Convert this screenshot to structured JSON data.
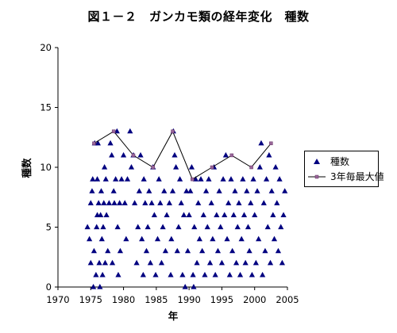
{
  "chart_data": {
    "type": "scatter",
    "title": "図１－２　ガンカモ類の経年変化　種数",
    "xlabel": "年",
    "ylabel": "種数",
    "xlim": [
      1970,
      2005
    ],
    "ylim": [
      0,
      20
    ],
    "xticks": [
      "1970",
      "1975",
      "1980",
      "1985",
      "1990",
      "1995",
      "2000",
      "2005"
    ],
    "yticks": [
      "0",
      "5",
      "10",
      "15",
      "20"
    ],
    "grid": false,
    "legend_position": "right",
    "colors": {
      "points": "#000080",
      "line": "#000000",
      "line_marker": "#996699"
    },
    "series": [
      {
        "name": "種数",
        "kind": "markers",
        "marker": "triangle",
        "points": [
          [
            1974.5,
            5
          ],
          [
            1974.8,
            4
          ],
          [
            1975.0,
            2
          ],
          [
            1975.0,
            7
          ],
          [
            1975.2,
            8
          ],
          [
            1975.3,
            9
          ],
          [
            1975.4,
            0
          ],
          [
            1975.5,
            3
          ],
          [
            1975.6,
            12
          ],
          [
            1975.8,
            1
          ],
          [
            1975.9,
            5
          ],
          [
            1976.0,
            6
          ],
          [
            1976.0,
            9
          ],
          [
            1976.1,
            12
          ],
          [
            1976.2,
            7
          ],
          [
            1976.3,
            2
          ],
          [
            1976.4,
            0
          ],
          [
            1976.5,
            6
          ],
          [
            1976.6,
            8
          ],
          [
            1976.7,
            4
          ],
          [
            1976.8,
            1
          ],
          [
            1976.9,
            5
          ],
          [
            1977.0,
            7
          ],
          [
            1977.1,
            10
          ],
          [
            1977.2,
            2
          ],
          [
            1977.3,
            9
          ],
          [
            1977.4,
            6
          ],
          [
            1977.6,
            3
          ],
          [
            1977.8,
            7
          ],
          [
            1978.0,
            12
          ],
          [
            1978.2,
            11
          ],
          [
            1978.3,
            2
          ],
          [
            1978.5,
            8
          ],
          [
            1978.6,
            7
          ],
          [
            1978.8,
            9
          ],
          [
            1979.0,
            13
          ],
          [
            1979.1,
            5
          ],
          [
            1979.2,
            1
          ],
          [
            1979.4,
            7
          ],
          [
            1979.5,
            3
          ],
          [
            1979.7,
            9
          ],
          [
            1980.0,
            11
          ],
          [
            1980.2,
            7
          ],
          [
            1980.4,
            4
          ],
          [
            1980.6,
            9
          ],
          [
            1981.0,
            13
          ],
          [
            1981.2,
            10
          ],
          [
            1981.5,
            11
          ],
          [
            1981.7,
            7
          ],
          [
            1982.0,
            2
          ],
          [
            1982.2,
            5
          ],
          [
            1982.4,
            8
          ],
          [
            1982.6,
            11
          ],
          [
            1982.8,
            4
          ],
          [
            1983.0,
            1
          ],
          [
            1983.1,
            9
          ],
          [
            1983.3,
            7
          ],
          [
            1983.5,
            3
          ],
          [
            1983.7,
            5
          ],
          [
            1983.9,
            8
          ],
          [
            1984.1,
            2
          ],
          [
            1984.3,
            7
          ],
          [
            1984.5,
            10
          ],
          [
            1984.7,
            6
          ],
          [
            1984.9,
            1
          ],
          [
            1985.2,
            4
          ],
          [
            1985.4,
            9
          ],
          [
            1985.6,
            7
          ],
          [
            1985.8,
            2
          ],
          [
            1986.0,
            5
          ],
          [
            1986.2,
            8
          ],
          [
            1986.4,
            3
          ],
          [
            1986.6,
            6
          ],
          [
            1987.0,
            7
          ],
          [
            1987.2,
            1
          ],
          [
            1987.3,
            4
          ],
          [
            1987.5,
            8
          ],
          [
            1987.6,
            13
          ],
          [
            1987.8,
            11
          ],
          [
            1988.0,
            10
          ],
          [
            1988.2,
            3
          ],
          [
            1988.4,
            5
          ],
          [
            1988.6,
            9
          ],
          [
            1988.8,
            7
          ],
          [
            1989.0,
            1
          ],
          [
            1989.2,
            6
          ],
          [
            1989.4,
            0
          ],
          [
            1989.6,
            8
          ],
          [
            1989.8,
            3
          ],
          [
            1990.0,
            6
          ],
          [
            1990.2,
            8
          ],
          [
            1990.4,
            10
          ],
          [
            1990.6,
            1
          ],
          [
            1990.7,
            0
          ],
          [
            1990.8,
            5
          ],
          [
            1991.0,
            9
          ],
          [
            1991.2,
            2
          ],
          [
            1991.4,
            7
          ],
          [
            1991.6,
            4
          ],
          [
            1991.8,
            9
          ],
          [
            1992.0,
            3
          ],
          [
            1992.2,
            6
          ],
          [
            1992.4,
            1
          ],
          [
            1992.6,
            8
          ],
          [
            1992.8,
            5
          ],
          [
            1993.0,
            9
          ],
          [
            1993.2,
            2
          ],
          [
            1993.4,
            7
          ],
          [
            1993.6,
            4
          ],
          [
            1993.8,
            10
          ],
          [
            1994.0,
            1
          ],
          [
            1994.2,
            6
          ],
          [
            1994.4,
            3
          ],
          [
            1994.6,
            8
          ],
          [
            1994.8,
            5
          ],
          [
            1995.0,
            2
          ],
          [
            1995.2,
            9
          ],
          [
            1995.4,
            6
          ],
          [
            1995.6,
            11
          ],
          [
            1995.8,
            4
          ],
          [
            1996.0,
            7
          ],
          [
            1996.2,
            1
          ],
          [
            1996.4,
            9
          ],
          [
            1996.6,
            3
          ],
          [
            1996.8,
            6
          ],
          [
            1997.0,
            8
          ],
          [
            1997.2,
            2
          ],
          [
            1997.4,
            5
          ],
          [
            1997.6,
            7
          ],
          [
            1997.8,
            1
          ],
          [
            1998.0,
            4
          ],
          [
            1998.2,
            9
          ],
          [
            1998.4,
            6
          ],
          [
            1998.6,
            2
          ],
          [
            1998.8,
            8
          ],
          [
            1999.0,
            5
          ],
          [
            1999.2,
            3
          ],
          [
            1999.4,
            7
          ],
          [
            1999.6,
            1
          ],
          [
            1999.8,
            9
          ],
          [
            2000.0,
            6
          ],
          [
            2000.2,
            2
          ],
          [
            2000.4,
            8
          ],
          [
            2000.6,
            4
          ],
          [
            2000.8,
            10
          ],
          [
            2001.0,
            12
          ],
          [
            2001.2,
            1
          ],
          [
            2001.4,
            7
          ],
          [
            2001.6,
            3
          ],
          [
            2001.8,
            9
          ],
          [
            2002.0,
            5
          ],
          [
            2002.2,
            11
          ],
          [
            2002.4,
            2
          ],
          [
            2002.6,
            8
          ],
          [
            2002.8,
            6
          ],
          [
            2003.0,
            4
          ],
          [
            2003.2,
            10
          ],
          [
            2003.4,
            7
          ],
          [
            2003.6,
            3
          ],
          [
            2003.8,
            9
          ],
          [
            2004.0,
            5
          ],
          [
            2004.2,
            2
          ],
          [
            2004.4,
            6
          ],
          [
            2004.6,
            8
          ]
        ]
      },
      {
        "name": "3年毎最大値",
        "kind": "line",
        "marker": "square",
        "points": [
          [
            1975.5,
            12
          ],
          [
            1978.5,
            13
          ],
          [
            1981.5,
            11
          ],
          [
            1984.5,
            10
          ],
          [
            1987.5,
            13
          ],
          [
            1990.5,
            9
          ],
          [
            1993.5,
            10
          ],
          [
            1996.5,
            11
          ],
          [
            1999.5,
            10
          ],
          [
            2002.5,
            12
          ]
        ]
      }
    ]
  }
}
